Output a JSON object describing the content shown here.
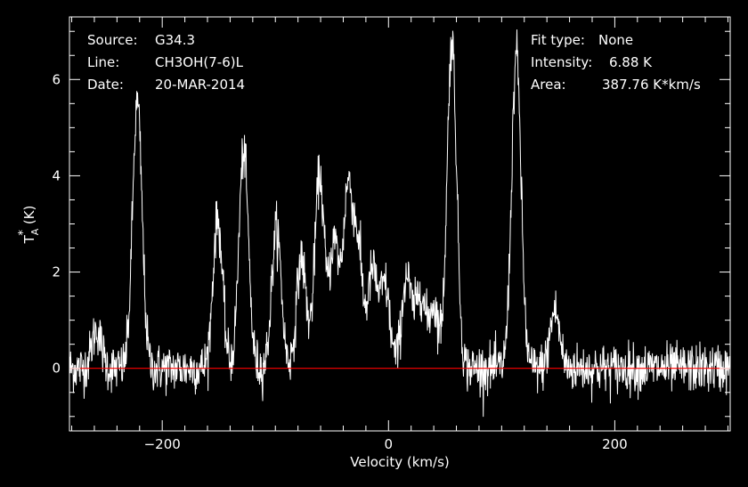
{
  "info_left": [
    {
      "label": "Source:",
      "value": "G34.3"
    },
    {
      "label": "Line:",
      "value": "CH3OH(7-6)L"
    },
    {
      "label": "Date:",
      "value": "20-MAR-2014"
    }
  ],
  "info_right": [
    {
      "label": "Fit type:",
      "value": "None"
    },
    {
      "label": "Intensity:",
      "value": "6.88 K"
    },
    {
      "label": "Area:",
      "value": "387.76 K*km/s"
    }
  ],
  "colors": {
    "background": "#000000",
    "spectrum": "#ffffff",
    "baseline": "#ff0000",
    "axes": "#ffffff"
  },
  "chart_data": {
    "type": "line",
    "xlabel": "Velocity (km/s)",
    "ylabel_main": "T",
    "ylabel_sup": "*",
    "ylabel_sub": "A",
    "ylabel_unit": "(K)",
    "xlim": [
      -282,
      302
    ],
    "ylim": [
      -1.3,
      7.3
    ],
    "x_ticks": [
      -200,
      0,
      200
    ],
    "y_ticks": [
      0,
      2,
      4,
      6
    ],
    "baseline_y": 0,
    "grid": false,
    "noise_rms": 0.25,
    "peaks": [
      {
        "x": -258,
        "y": 0.8
      },
      {
        "x": -222,
        "y": 5.5
      },
      {
        "x": -151,
        "y": 3.1
      },
      {
        "x": -128,
        "y": 4.5
      },
      {
        "x": -99,
        "y": 2.9
      },
      {
        "x": -77,
        "y": 2.3
      },
      {
        "x": -61,
        "y": 4.0
      },
      {
        "x": -48,
        "y": 2.6
      },
      {
        "x": -36,
        "y": 3.6
      },
      {
        "x": -27,
        "y": 2.4
      },
      {
        "x": -14,
        "y": 2.0
      },
      {
        "x": -3,
        "y": 1.7
      },
      {
        "x": 16,
        "y": 1.9
      },
      {
        "x": 28,
        "y": 1.6
      },
      {
        "x": 40,
        "y": 1.3
      },
      {
        "x": 56,
        "y": 6.8
      },
      {
        "x": 113,
        "y": 6.5
      },
      {
        "x": 147,
        "y": 1.2
      }
    ]
  }
}
